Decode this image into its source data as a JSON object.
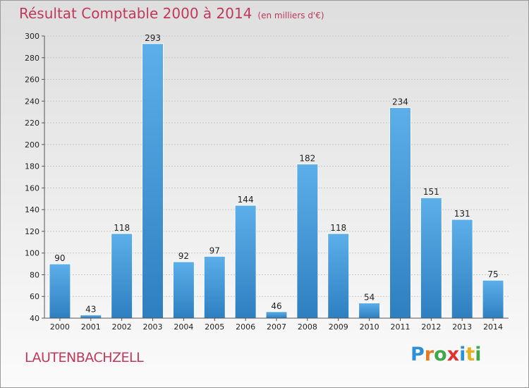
{
  "header": {
    "title": "Résultat Comptable 2000 à 2014",
    "subtitle": "(en milliers d'€)"
  },
  "footer": {
    "location": "LAUTENBACHZELL",
    "logo_text": "Proxiti",
    "logo_letters": [
      {
        "char": "P",
        "color": "#2f8fd8"
      },
      {
        "char": "r",
        "color": "#e67a22"
      },
      {
        "char": "o",
        "color": "#3fa64a"
      },
      {
        "char": "x",
        "color": "#e0312d"
      },
      {
        "char": "i",
        "color": "#2f8fd8"
      },
      {
        "char": "t",
        "color": "#e6b022"
      },
      {
        "char": "i",
        "color": "#3fa64a"
      }
    ]
  },
  "chart_data": {
    "type": "bar",
    "title": "Résultat Comptable 2000 à 2014",
    "subtitle": "(en milliers d'€)",
    "categories": [
      "2000",
      "2001",
      "2002",
      "2003",
      "2004",
      "2005",
      "2006",
      "2007",
      "2008",
      "2009",
      "2010",
      "2011",
      "2012",
      "2013",
      "2014"
    ],
    "values": [
      90,
      43,
      118,
      293,
      92,
      97,
      144,
      46,
      182,
      118,
      54,
      234,
      151,
      131,
      75
    ],
    "ylim": [
      40,
      300
    ],
    "yticks": [
      40,
      60,
      80,
      100,
      120,
      140,
      160,
      180,
      200,
      220,
      240,
      260,
      280,
      300
    ],
    "grid": true,
    "colors": {
      "bar_light": "#5dafea",
      "bar_dark": "#2d7fc0",
      "grid": "#c8c8c8",
      "axis": "#555555"
    }
  }
}
